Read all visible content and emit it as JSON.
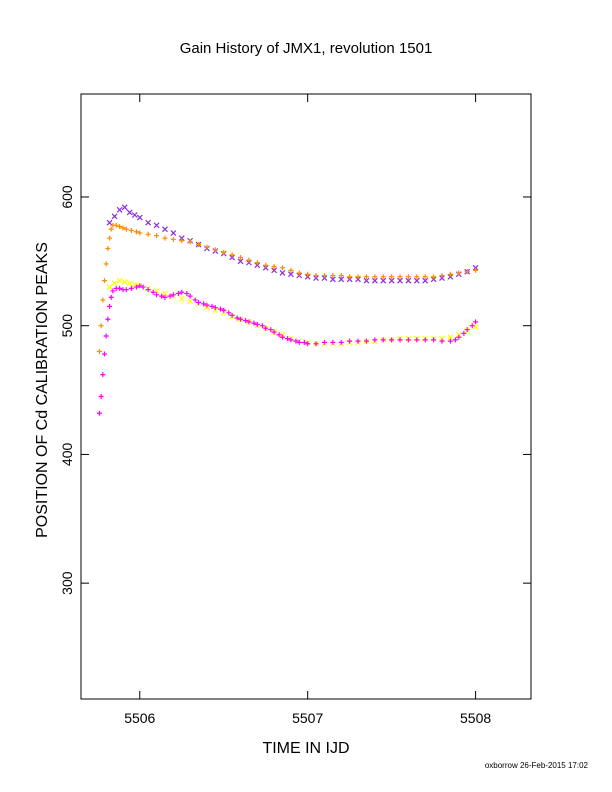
{
  "chart_data": {
    "type": "scatter",
    "title": "Gain History of JMX1, revolution 1501",
    "xlabel": "TIME IN IJD",
    "ylabel": "POSITION OF Cd CALIBRATION PEAKS",
    "xlim": [
      5505.65,
      5508.33
    ],
    "ylim": [
      210,
      680
    ],
    "xticks": [
      5506,
      5507,
      5508
    ],
    "yticks": [
      300,
      400,
      500,
      600
    ],
    "grid": false,
    "legend": "none",
    "series": [
      {
        "marker": "x",
        "color": "#8a2be2",
        "x": [
          5505.82,
          5505.85,
          5505.88,
          5505.91,
          5505.94,
          5505.97,
          5506.0,
          5506.05,
          5506.1,
          5506.15,
          5506.2,
          5506.25,
          5506.3,
          5506.35,
          5506.4,
          5506.45,
          5506.5,
          5506.55,
          5506.6,
          5506.65,
          5506.7,
          5506.75,
          5506.8,
          5506.85,
          5506.9,
          5506.95,
          5507.0,
          5507.05,
          5507.1,
          5507.15,
          5507.2,
          5507.25,
          5507.3,
          5507.35,
          5507.4,
          5507.45,
          5507.5,
          5507.55,
          5507.6,
          5507.65,
          5507.7,
          5507.75,
          5507.8,
          5507.85,
          5507.9,
          5507.95,
          5508.0
        ],
        "y": [
          580,
          585,
          590,
          592,
          588,
          586,
          584,
          580,
          578,
          575,
          572,
          568,
          566,
          563,
          560,
          558,
          556,
          553,
          550,
          549,
          547,
          545,
          543,
          541,
          540,
          539,
          538,
          537,
          537,
          536,
          536,
          536,
          536,
          535,
          535,
          535,
          535,
          535,
          535,
          535,
          535,
          536,
          537,
          538,
          540,
          542,
          545
        ]
      },
      {
        "marker": "x",
        "color": "#ffff00",
        "x": [
          5505.82,
          5505.85,
          5505.88,
          5505.91,
          5505.94,
          5505.97,
          5506.0,
          5506.05,
          5506.1,
          5506.15,
          5506.2,
          5506.25,
          5506.3,
          5506.35,
          5506.4,
          5506.45,
          5506.5,
          5506.55,
          5506.6,
          5506.65,
          5506.7,
          5506.75,
          5506.8,
          5506.85,
          5506.9,
          5506.95,
          5507.0,
          5507.05,
          5507.1,
          5507.15,
          5507.2,
          5507.25,
          5507.3,
          5507.35,
          5507.4,
          5507.45,
          5507.5,
          5507.55,
          5507.6,
          5507.65,
          5507.7,
          5507.75,
          5507.8,
          5507.85,
          5507.9,
          5507.95,
          5508.0
        ],
        "y": [
          530,
          533,
          535,
          534,
          533,
          532,
          531,
          529,
          527,
          525,
          523,
          521,
          519,
          517,
          514,
          512,
          510,
          507,
          505,
          503,
          500,
          498,
          495,
          493,
          490,
          488,
          487,
          486,
          486,
          486,
          486,
          487,
          487,
          488,
          488,
          489,
          489,
          490,
          490,
          490,
          490,
          490,
          490,
          491,
          493,
          496,
          499
        ]
      },
      {
        "marker": "+",
        "color": "#ff8c00",
        "x": [
          5505.76,
          5505.77,
          5505.78,
          5505.79,
          5505.8,
          5505.81,
          5505.82,
          5505.83,
          5505.84,
          5505.86,
          5505.88,
          5505.9,
          5505.92,
          5505.95,
          5505.98,
          5506.0,
          5506.05,
          5506.1,
          5506.15,
          5506.2,
          5506.25,
          5506.3,
          5506.35,
          5506.4,
          5506.45,
          5506.5,
          5506.55,
          5506.6,
          5506.65,
          5506.7,
          5506.75,
          5506.8,
          5506.85,
          5506.9,
          5506.95,
          5507.0,
          5507.05,
          5507.1,
          5507.15,
          5507.2,
          5507.25,
          5507.3,
          5507.35,
          5507.4,
          5507.45,
          5507.5,
          5507.55,
          5507.6,
          5507.65,
          5507.7,
          5507.75,
          5507.8,
          5507.85,
          5507.9,
          5507.95,
          5508.0
        ],
        "y": [
          480,
          500,
          520,
          535,
          548,
          560,
          568,
          575,
          578,
          578,
          577,
          576,
          575,
          574,
          573,
          572,
          571,
          570,
          568,
          567,
          566,
          565,
          563,
          561,
          559,
          557,
          555,
          553,
          551,
          549,
          547,
          546,
          545,
          543,
          541,
          540,
          539,
          539,
          539,
          539,
          538,
          538,
          538,
          538,
          538,
          538,
          538,
          538,
          538,
          538,
          538,
          539,
          540,
          541,
          542,
          543
        ]
      },
      {
        "marker": "+",
        "color": "#ff00ff",
        "x": [
          5505.76,
          5505.77,
          5505.78,
          5505.79,
          5505.8,
          5505.81,
          5505.82,
          5505.83,
          5505.84,
          5505.86,
          5505.88,
          5505.9,
          5505.92,
          5505.95,
          5505.98,
          5506.0,
          5506.02,
          5506.05,
          5506.08,
          5506.1,
          5506.13,
          5506.15,
          5506.18,
          5506.2,
          5506.23,
          5506.25,
          5506.28,
          5506.3,
          5506.33,
          5506.35,
          5506.38,
          5506.4,
          5506.43,
          5506.45,
          5506.48,
          5506.5,
          5506.53,
          5506.55,
          5506.58,
          5506.6,
          5506.63,
          5506.65,
          5506.68,
          5506.7,
          5506.73,
          5506.75,
          5506.78,
          5506.8,
          5506.83,
          5506.85,
          5506.88,
          5506.9,
          5506.93,
          5506.95,
          5506.98,
          5507.0,
          5507.05,
          5507.1,
          5507.15,
          5507.2,
          5507.25,
          5507.3,
          5507.35,
          5507.4,
          5507.45,
          5507.5,
          5507.55,
          5507.6,
          5507.65,
          5507.7,
          5507.75,
          5507.8,
          5507.85,
          5507.88,
          5507.9,
          5507.93,
          5507.95,
          5507.98,
          5508.0
        ],
        "y": [
          432,
          445,
          462,
          478,
          492,
          505,
          515,
          522,
          527,
          529,
          529,
          528,
          528,
          529,
          530,
          531,
          530,
          528,
          526,
          524,
          523,
          522,
          523,
          524,
          525,
          526,
          525,
          523,
          520,
          518,
          517,
          516,
          515,
          514,
          513,
          512,
          510,
          508,
          506,
          505,
          504,
          503,
          502,
          501,
          500,
          498,
          497,
          495,
          493,
          491,
          490,
          489,
          488,
          487,
          487,
          486,
          486,
          487,
          487,
          487,
          488,
          488,
          488,
          489,
          489,
          489,
          489,
          489,
          489,
          489,
          489,
          488,
          488,
          489,
          491,
          494,
          497,
          500,
          503
        ]
      }
    ]
  },
  "footer": {
    "credit": "oxborrow 26-Feb-2015 17:02"
  }
}
